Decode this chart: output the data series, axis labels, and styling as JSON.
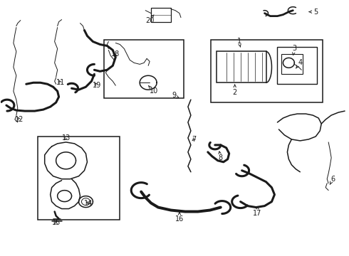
{
  "bg_color": "#ffffff",
  "line_color": "#1a1a1a",
  "lw_thin": 0.7,
  "lw_med": 1.1,
  "lw_thick": 1.8,
  "lw_hose": 2.2,
  "label_fs": 7.0,
  "figsize": [
    4.9,
    3.6
  ],
  "dpi": 100
}
